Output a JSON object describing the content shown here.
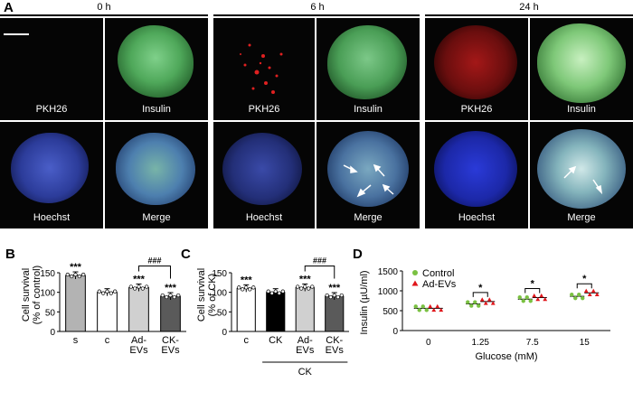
{
  "panel_a": {
    "label": "A",
    "timepoints": [
      "0 h",
      "6 h",
      "24 h"
    ],
    "channels": [
      "PKH26",
      "Insulin",
      "Hoechst",
      "Merge"
    ]
  },
  "chart_data": [
    {
      "panel": "B",
      "type": "bar",
      "ylabel": "Cell survival\n(% of control)",
      "ylim": [
        0,
        150
      ],
      "yticks": [
        0,
        50,
        100,
        150
      ],
      "categories": [
        "s",
        "c",
        "Ad-\nEVs",
        "CK-\nEVs"
      ],
      "values": [
        143,
        100,
        112,
        90
      ],
      "bar_colors": [
        "#b3b3b3",
        "#ffffff",
        "#d0d0d0",
        "#5a5a5a"
      ],
      "annotations": [
        "***",
        "",
        "***",
        "***"
      ],
      "bracket": {
        "from": 2,
        "to": 3,
        "label": "###"
      }
    },
    {
      "panel": "C",
      "type": "bar",
      "ylabel": "Cell survival\n(% of CK)",
      "ylim": [
        0,
        150
      ],
      "yticks": [
        0,
        50,
        100,
        150
      ],
      "categories": [
        "c",
        "CK",
        "Ad-\nEVs",
        "CK-\nEVs"
      ],
      "values": [
        110,
        100,
        112,
        90
      ],
      "bar_colors": [
        "#ffffff",
        "#000000",
        "#d0d0d0",
        "#5a5a5a"
      ],
      "annotations": [
        "***",
        "",
        "***",
        "***"
      ],
      "bracket": {
        "from": 2,
        "to": 3,
        "label": "###"
      },
      "group_label": "CK"
    },
    {
      "panel": "D",
      "type": "scatter",
      "xlabel": "Glucose (mM)",
      "ylabel": "Insulin (µU/ml)",
      "ylim": [
        0,
        1500
      ],
      "yticks": [
        0,
        500,
        1000,
        1500
      ],
      "categories": [
        "0",
        "1.25",
        "7.5",
        "15"
      ],
      "series": [
        {
          "name": "Control",
          "color": "#7ac142",
          "marker": "circle",
          "values": [
            560,
            670,
            790,
            860
          ]
        },
        {
          "name": "Ad-EVs",
          "color": "#e0161b",
          "marker": "triangle",
          "values": [
            560,
            730,
            830,
            950
          ]
        }
      ],
      "significance": [
        "",
        "*",
        "*",
        "*"
      ]
    }
  ]
}
